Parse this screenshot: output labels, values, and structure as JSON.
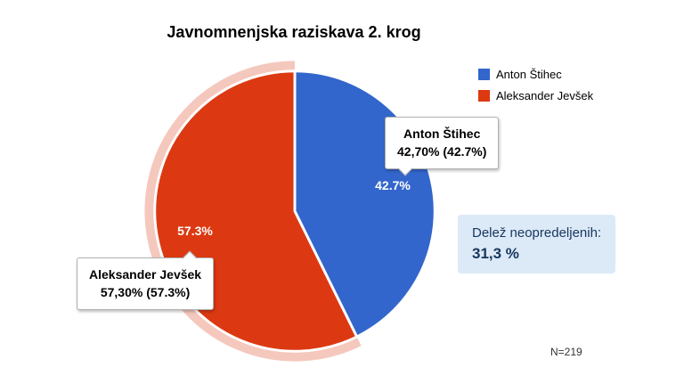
{
  "chart_data": {
    "type": "pie",
    "title": "Javnomnenjska raziskava 2. krog",
    "categories": [
      "Anton Štihec",
      "Aleksander Jevšek"
    ],
    "values": [
      42.7,
      57.3
    ],
    "colors": [
      "#3366cc",
      "#dc3912"
    ],
    "slice_labels": [
      "42.7%",
      "57.3%"
    ],
    "legend_position": "right",
    "highlighted_slice_index": 1,
    "background": "#ffffff"
  },
  "callouts": {
    "anton": {
      "name": "Anton Štihec",
      "value": "42,70% (42.7%)"
    },
    "jevsek": {
      "name": "Aleksander Jevšek",
      "value": "57,30% (57.3%)"
    }
  },
  "annotation_box": {
    "label": "Delež neopredeljenih:",
    "value": "31,3 %"
  },
  "sample_note": "N=219"
}
